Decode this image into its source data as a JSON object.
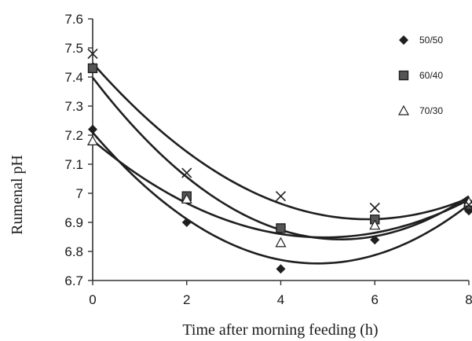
{
  "chart_data": {
    "type": "scatter",
    "title": "",
    "xlabel": "Time after morning feeding (h)",
    "ylabel": "Rumenal pH",
    "xlim": [
      0,
      8
    ],
    "ylim": [
      6.7,
      7.6
    ],
    "x_ticks": [
      "0",
      "2",
      "4",
      "6",
      "8"
    ],
    "y_ticks": [
      "6.7",
      "6.8",
      "6.9",
      "7",
      "7.1",
      "7.2",
      "7.3",
      "7.4",
      "7.5",
      "7.6"
    ],
    "grid": false,
    "legend_position": "right",
    "x": [
      0,
      2,
      4,
      6,
      8
    ],
    "series": [
      {
        "name": "50/50",
        "marker": "diamond",
        "values": [
          7.22,
          6.9,
          6.74,
          6.84,
          6.94
        ]
      },
      {
        "name": "60/40",
        "marker": "square",
        "values": [
          7.43,
          6.99,
          6.88,
          6.91,
          6.96
        ]
      },
      {
        "name": "70/30",
        "marker": "triangle",
        "values": [
          7.18,
          6.98,
          6.83,
          6.89,
          6.97
        ]
      },
      {
        "name": "",
        "marker": "cross",
        "values": [
          7.48,
          7.07,
          6.99,
          6.95,
          6.96
        ]
      }
    ],
    "trendline": "polynomial (order 2) fit per series",
    "colors": {
      "ink": "#1f1f1f",
      "square_fill": "#555555"
    }
  }
}
